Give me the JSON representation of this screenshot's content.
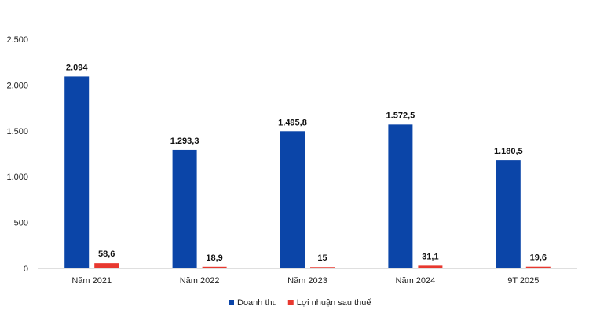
{
  "chart_data": {
    "type": "bar",
    "title": "",
    "xlabel": "",
    "ylabel": "",
    "categories": [
      "Năm 2021",
      "Năm 2022",
      "Năm 2023",
      "Năm 2024",
      "9T 2025"
    ],
    "series": [
      {
        "name": "Doanh thu",
        "color": "#0b45a8",
        "values": [
          2094,
          1293.3,
          1495.8,
          1572.5,
          1180.5
        ],
        "labels": [
          "2.094",
          "1.293,3",
          "1.495,8",
          "1.572,5",
          "1.180,5"
        ]
      },
      {
        "name": "Lợi nhuận sau thuế",
        "color": "#e8382f",
        "values": [
          58.6,
          18.9,
          15,
          31.1,
          19.6
        ],
        "labels": [
          "58,6",
          "18,9",
          "15",
          "31,1",
          "19,6"
        ]
      }
    ],
    "ylim": [
      0,
      2500
    ],
    "yticks": [
      0,
      500,
      1000,
      1500,
      2000,
      2500
    ],
    "ytick_labels": [
      "0",
      "500",
      "1.000",
      "1.500",
      "2.000",
      "2.500"
    ],
    "grid": false,
    "legend_position": "bottom"
  }
}
